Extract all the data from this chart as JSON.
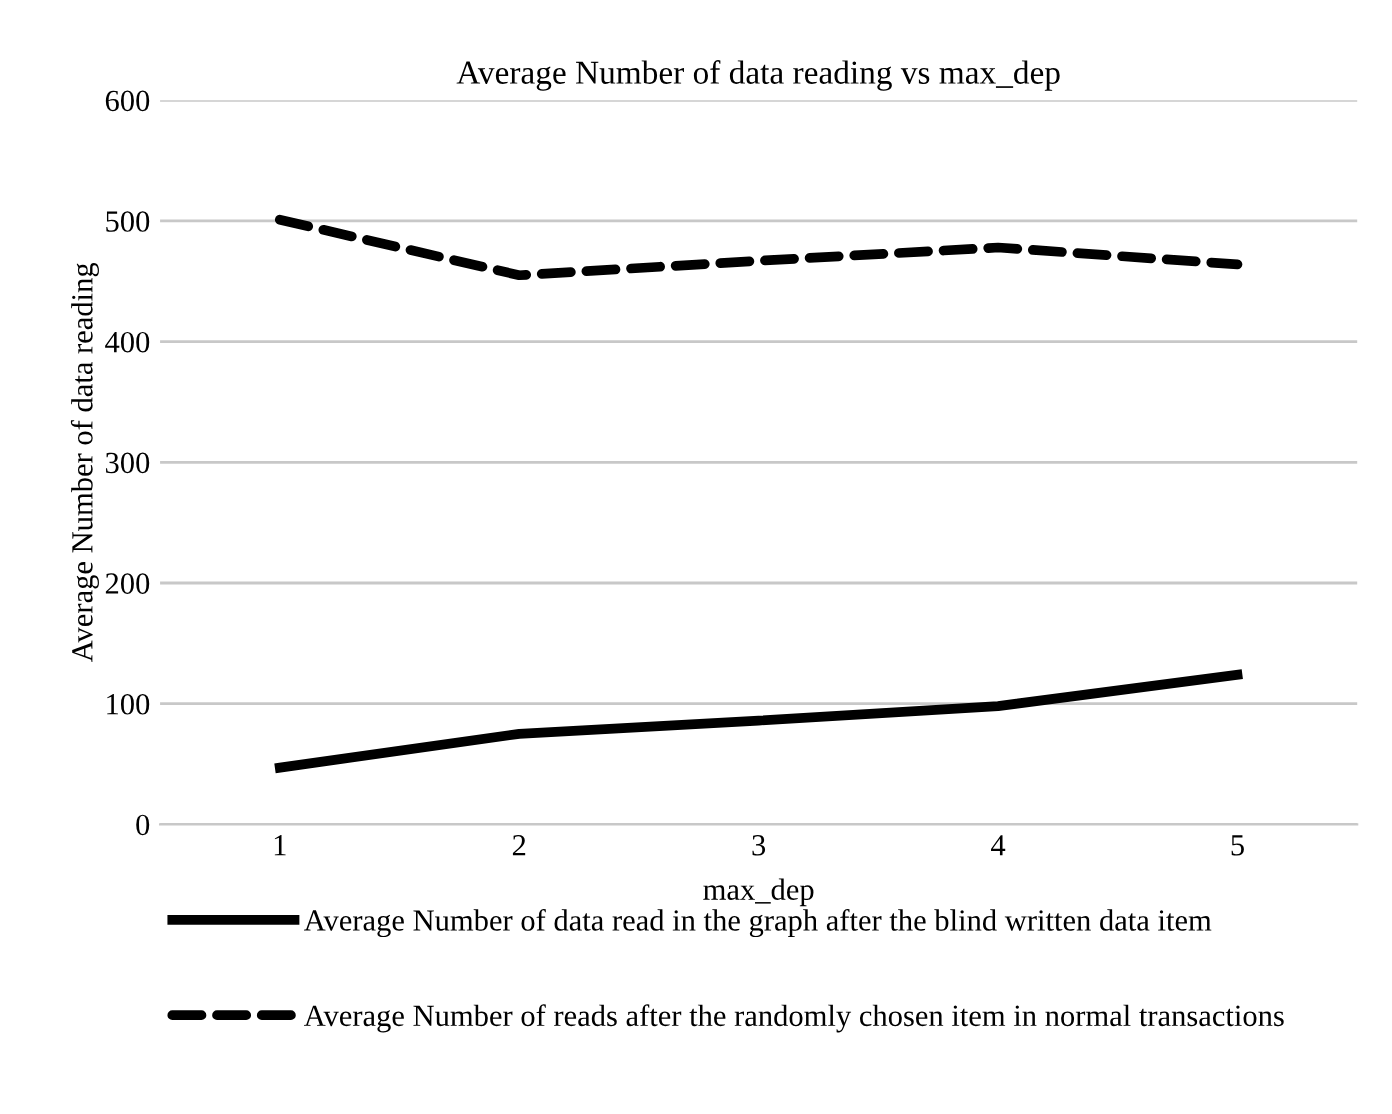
{
  "chart_data": {
    "type": "line",
    "title": "Average Number of data reading vs max_dep",
    "xlabel": "max_dep",
    "ylabel": "Average Number of data reading",
    "categories": [
      "1",
      "2",
      "3",
      "4",
      "5"
    ],
    "series": [
      {
        "name": "Average Number of data read in the graph after the blind written data item",
        "color": "#000000",
        "line_style": "solid",
        "values": [
          47,
          75,
          86,
          98,
          124
        ]
      },
      {
        "name": "Average Number of reads after the randomly chosen item in normal transactions",
        "color": "#000000",
        "line_style": "dashed",
        "values": [
          501,
          455,
          467,
          478,
          464
        ]
      }
    ],
    "ylim": [
      0,
      600
    ],
    "yticks": [
      0,
      100,
      200,
      300,
      400,
      500,
      600
    ],
    "grid": "y",
    "legend": "bottom",
    "marker": "none"
  }
}
